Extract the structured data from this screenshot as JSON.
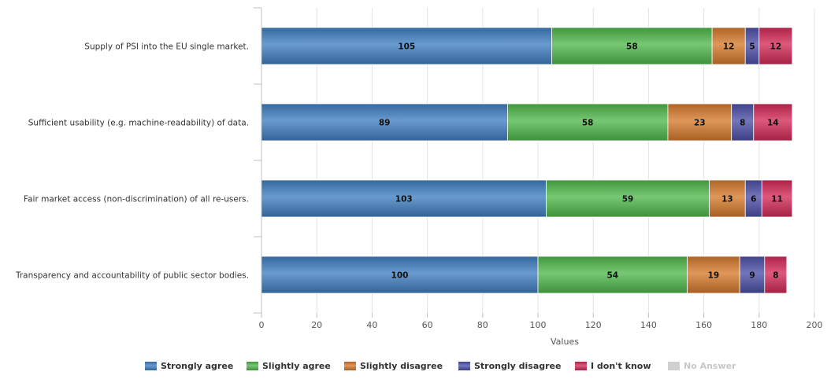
{
  "chart_data": {
    "type": "bar",
    "orientation": "horizontal",
    "stacked": true,
    "title": "",
    "xlabel": "Values",
    "ylabel": "",
    "xlim": [
      0,
      200
    ],
    "x_ticks": [
      0,
      20,
      40,
      60,
      80,
      100,
      120,
      140,
      160,
      180,
      200
    ],
    "grid": true,
    "legend_position": "bottom",
    "categories": [
      "Supply of PSI into the EU single market.",
      "Sufficient usability (e.g. machine-readability) of data.",
      "Fair market access (non-discrimination) of all re-users.",
      "Transparency and accountability of public sector bodies."
    ],
    "series": [
      {
        "name": "Strongly agree",
        "color": "#3f7fc1",
        "values": [
          105,
          89,
          103,
          100
        ]
      },
      {
        "name": "Slightly agree",
        "color": "#4fb84a",
        "values": [
          58,
          58,
          59,
          54
        ]
      },
      {
        "name": "Slightly disagree",
        "color": "#d67a2c",
        "values": [
          12,
          23,
          13,
          19
        ]
      },
      {
        "name": "Strongly disagree",
        "color": "#4d4fa8",
        "values": [
          5,
          8,
          6,
          9
        ]
      },
      {
        "name": "I don't know",
        "color": "#d42a57",
        "values": [
          12,
          14,
          11,
          8
        ]
      },
      {
        "name": "No Answer",
        "color": "#cccccc",
        "values": [
          0,
          0,
          0,
          0
        ],
        "muted": true
      }
    ]
  }
}
